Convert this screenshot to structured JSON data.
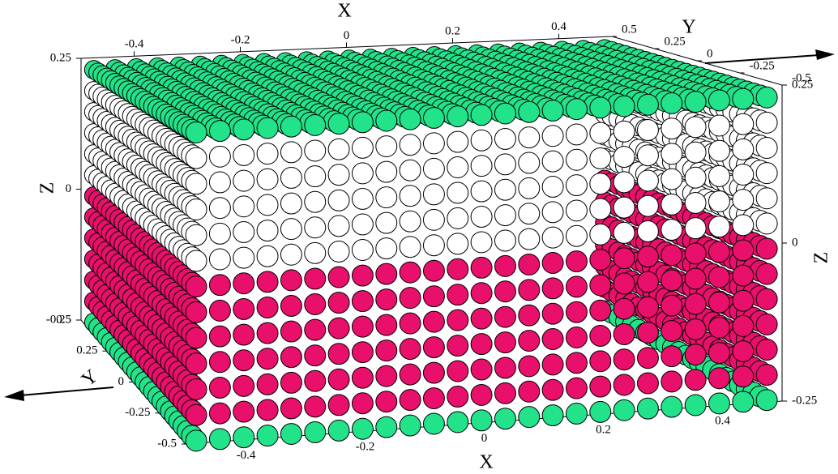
{
  "chart_data": {
    "type": "scatter3d",
    "xlabel": "X",
    "ylabel": "Y",
    "zlabel": "Z",
    "xlim": [
      -0.5,
      0.5
    ],
    "ylim": [
      -0.5,
      0.5
    ],
    "zlim": [
      -0.25,
      0.25
    ],
    "xticks": [
      -0.4,
      -0.2,
      0,
      0.2,
      0.4
    ],
    "yticks": [
      -0.5,
      -0.25,
      0,
      0.25,
      0.5
    ],
    "zticks": [
      -0.25,
      0,
      0.25
    ],
    "layers": [
      {
        "color": "#22e38a",
        "zlim": [
          -0.25,
          -0.25
        ]
      },
      {
        "color": "#e8106a",
        "zlim": [
          -0.21,
          -0.01
        ]
      },
      {
        "color": "#ffffff",
        "zlim": [
          0.03,
          0.19
        ]
      },
      {
        "color": "#22e38a",
        "zlim": [
          0.23,
          0.23
        ]
      }
    ]
  }
}
